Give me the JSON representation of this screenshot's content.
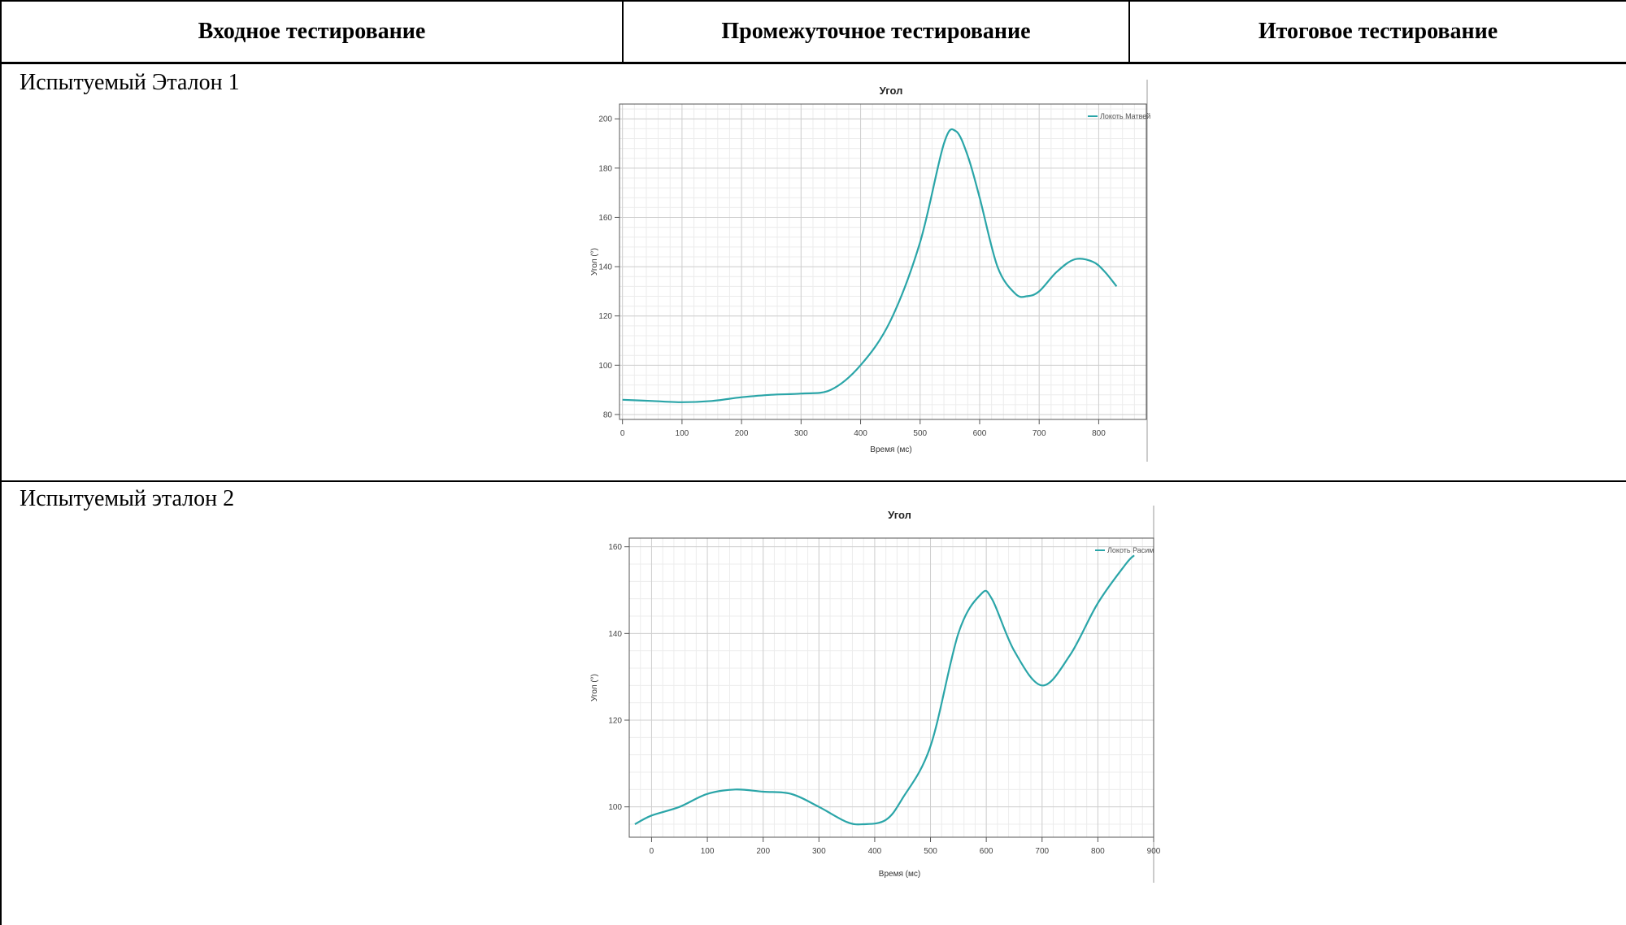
{
  "table": {
    "headers": [
      "Входное тестирование",
      "Промежуточное тестирование",
      "Итоговое тестирование"
    ],
    "rows": [
      {
        "label": "Испытуемый Эталон 1"
      },
      {
        "label": "Испытуемый эталон 2"
      }
    ]
  },
  "chart_data": [
    {
      "type": "line",
      "title": "Угол",
      "xlabel": "Время (мс)",
      "ylabel": "Угол (°)",
      "xlim": [
        -5,
        880
      ],
      "ylim": [
        78,
        206
      ],
      "xticks": [
        0,
        100,
        200,
        300,
        400,
        500,
        600,
        700,
        800
      ],
      "yticks": [
        80,
        100,
        120,
        140,
        160,
        180,
        200
      ],
      "grid": true,
      "legend": "top-right",
      "series": [
        {
          "name": "Локоть Матвей",
          "color": "#2aa5a8",
          "x": [
            0,
            50,
            100,
            150,
            200,
            250,
            300,
            350,
            400,
            450,
            500,
            540,
            560,
            580,
            600,
            630,
            660,
            680,
            700,
            730,
            760,
            790,
            810,
            830
          ],
          "y": [
            86,
            85.5,
            85,
            85.5,
            87,
            88,
            88.5,
            90,
            100,
            118,
            150,
            190,
            195,
            185,
            168,
            140,
            129,
            128,
            130,
            138,
            143,
            142,
            138,
            132
          ]
        }
      ]
    },
    {
      "type": "line",
      "title": "Угол",
      "xlabel": "Время (мс)",
      "ylabel": "Угол (°)",
      "xlim": [
        -40,
        900
      ],
      "ylim": [
        93,
        162
      ],
      "xticks": [
        0,
        100,
        200,
        300,
        400,
        500,
        600,
        700,
        800,
        900
      ],
      "yticks": [
        100,
        120,
        140,
        160
      ],
      "grid": true,
      "legend": "top-right",
      "series": [
        {
          "name": "Локоть Расим",
          "color": "#2aa5a8",
          "x": [
            -30,
            0,
            50,
            100,
            150,
            200,
            250,
            300,
            350,
            380,
            420,
            450,
            500,
            550,
            590,
            610,
            650,
            700,
            750,
            800,
            850,
            865
          ],
          "y": [
            96,
            98,
            100,
            103,
            104,
            103.5,
            103,
            100,
            96.5,
            96,
            97,
            102,
            114,
            140,
            149,
            148,
            136,
            128,
            135,
            147,
            156,
            158
          ]
        }
      ]
    }
  ]
}
